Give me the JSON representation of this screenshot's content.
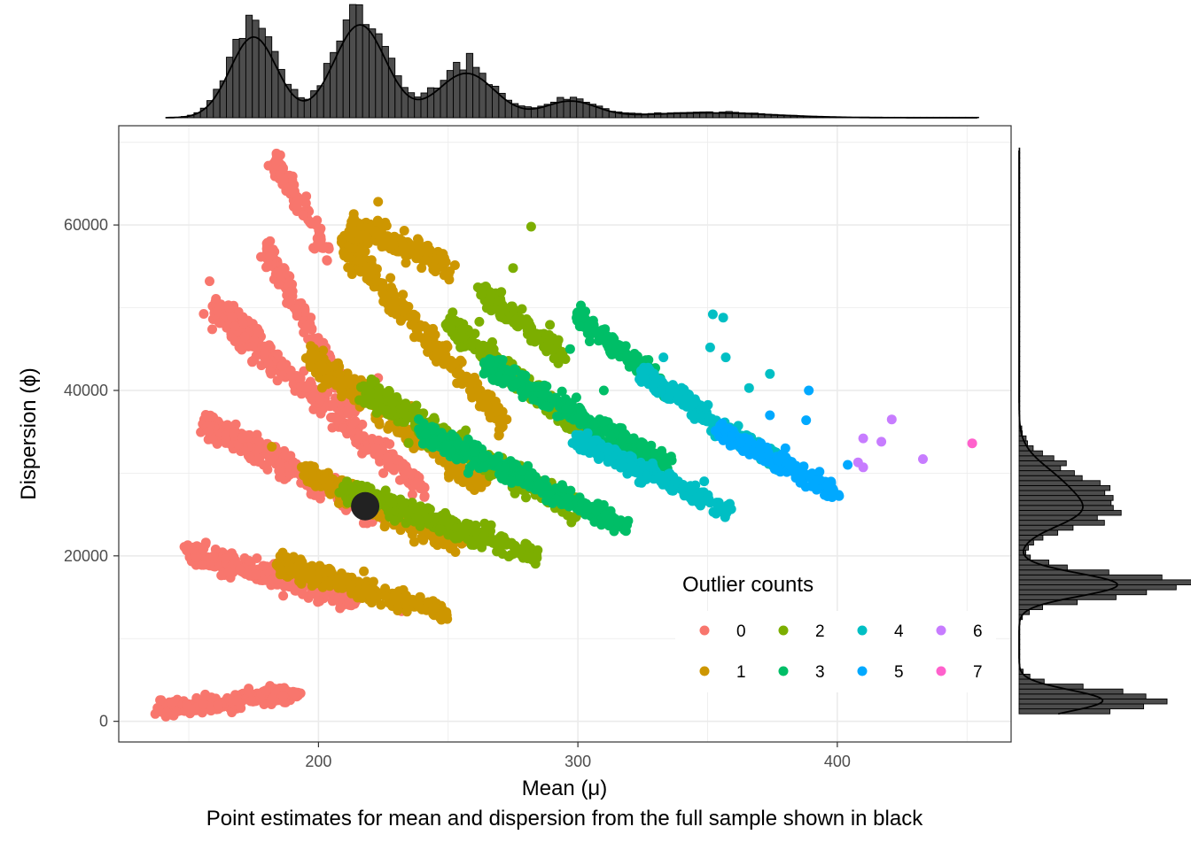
{
  "chart_data": {
    "type": "scatter",
    "xlabel": "Mean (μ)",
    "ylabel": "Dispersion (ϕ)",
    "caption": "Point estimates for mean and dispersion from the full sample shown in black",
    "xlim": [
      123,
      467
    ],
    "ylim": [
      -2500,
      72000
    ],
    "x_ticks": [
      200,
      300,
      400
    ],
    "y_ticks": [
      0,
      20000,
      40000,
      60000
    ],
    "grid": true,
    "legend": {
      "title": "Outlier counts",
      "placement": "bottom-right inside",
      "entries": [
        {
          "label": "0",
          "color": "#F8766D"
        },
        {
          "label": "1",
          "color": "#CD9600"
        },
        {
          "label": "2",
          "color": "#7CAE00"
        },
        {
          "label": "3",
          "color": "#00BE67"
        },
        {
          "label": "4",
          "color": "#00BFC4"
        },
        {
          "label": "5",
          "color": "#00A9FF"
        },
        {
          "label": "6",
          "color": "#C77CFF"
        },
        {
          "label": "7",
          "color": "#FF61CC"
        }
      ]
    },
    "series": [
      {
        "name": "0",
        "color": "#F8766D",
        "bands": [
          {
            "x": [
              140,
              192
            ],
            "y": [
              1500,
              3500
            ],
            "slope": 45,
            "spread": 1100
          },
          {
            "x": [
              150,
              215
            ],
            "y": [
              20500,
              14500
            ],
            "spread": 1400
          },
          {
            "x": [
              156,
              225
            ],
            "y": [
              36000,
              25000
            ],
            "spread": 1800
          },
          {
            "x": [
              160,
              240
            ],
            "y": [
              50000,
              28000
            ],
            "spread": 1800
          },
          {
            "x": [
              180,
              215
            ],
            "y": [
              57000,
              37000
            ],
            "spread": 1400
          },
          {
            "x": [
              183,
              205
            ],
            "y": [
              68000,
              56000
            ],
            "spread": 1500
          }
        ],
        "extra_points": [
          [
            158,
            53200
          ],
          [
            223,
            41500
          ],
          [
            225,
            30000
          ],
          [
            222,
            33000
          ],
          [
            238,
            28800
          ],
          [
            232,
            13300
          ],
          [
            185,
            29500
          ]
        ]
      },
      {
        "name": "1",
        "color": "#CD9600",
        "bands": [
          {
            "x": [
              185,
              250
            ],
            "y": [
              19000,
              13000
            ],
            "spread": 1300
          },
          {
            "x": [
              195,
              255
            ],
            "y": [
              30000,
              21000
            ],
            "spread": 1500
          },
          {
            "x": [
              197,
              265
            ],
            "y": [
              44000,
              28000
            ],
            "spread": 1700
          },
          {
            "x": [
              210,
              272
            ],
            "y": [
              57500,
              36000
            ],
            "spread": 1700
          },
          {
            "x": [
              213,
              250
            ],
            "y": [
              60000,
              55000
            ],
            "spread": 1500
          }
        ],
        "extra_points": [
          [
            223,
            62800
          ],
          [
            218,
            56800
          ],
          [
            245,
            55800
          ],
          [
            182,
            33200
          ]
        ]
      },
      {
        "name": "2",
        "color": "#7CAE00",
        "bands": [
          {
            "x": [
              210,
              285
            ],
            "y": [
              28000,
              20000
            ],
            "spread": 1500
          },
          {
            "x": [
              218,
              300
            ],
            "y": [
              40000,
              25000
            ],
            "spread": 1600
          },
          {
            "x": [
              250,
              310
            ],
            "y": [
              48000,
              33000
            ],
            "spread": 1400
          },
          {
            "x": [
              263,
              295
            ],
            "y": [
              52000,
              44000
            ],
            "spread": 1300
          }
        ],
        "extra_points": [
          [
            282,
            59800
          ],
          [
            275,
            54800
          ],
          [
            262,
            48300
          ],
          [
            281,
            48300
          ],
          [
            226,
            37500
          ]
        ]
      },
      {
        "name": "3",
        "color": "#00BE67",
        "bands": [
          {
            "x": [
              240,
              320
            ],
            "y": [
              35000,
              23500
            ],
            "spread": 1400
          },
          {
            "x": [
              265,
              335
            ],
            "y": [
              43000,
              31000
            ],
            "spread": 1400
          },
          {
            "x": [
              300,
              335
            ],
            "y": [
              49000,
              40000
            ],
            "spread": 1200
          }
        ],
        "extra_points": [
          [
            301,
            49500
          ],
          [
            297,
            45000
          ],
          [
            310,
            40000
          ]
        ]
      },
      {
        "name": "4",
        "color": "#00BFC4",
        "bands": [
          {
            "x": [
              300,
              358
            ],
            "y": [
              34000,
              25500
            ],
            "spread": 1200
          },
          {
            "x": [
              325,
              378
            ],
            "y": [
              42000,
              31000
            ],
            "spread": 1200
          }
        ],
        "extra_points": [
          [
            352,
            49200
          ],
          [
            356,
            48800
          ],
          [
            351,
            45200
          ],
          [
            357,
            44000
          ],
          [
            374,
            42000
          ],
          [
            333,
            44000
          ],
          [
            366,
            40300
          ]
        ]
      },
      {
        "name": "5",
        "color": "#00A9FF",
        "bands": [
          {
            "x": [
              355,
              400
            ],
            "y": [
              35000,
              27500
            ],
            "spread": 1100
          }
        ],
        "extra_points": [
          [
            389,
            40000
          ],
          [
            388,
            36400
          ],
          [
            404,
            31000
          ],
          [
            398,
            27100
          ],
          [
            392,
            28000
          ],
          [
            380,
            33000
          ],
          [
            374,
            37000
          ]
        ]
      },
      {
        "name": "6",
        "color": "#C77CFF",
        "bands": [],
        "extra_points": [
          [
            421,
            36500
          ],
          [
            410,
            34200
          ],
          [
            417,
            33800
          ],
          [
            408,
            31300
          ],
          [
            410,
            30700
          ],
          [
            433,
            31700
          ]
        ]
      },
      {
        "name": "7",
        "color": "#FF61CC",
        "bands": [],
        "extra_points": [
          [
            452,
            33600
          ]
        ]
      }
    ],
    "point_estimate": {
      "x": 218,
      "y": 26000,
      "color": "#222222"
    },
    "marginal_x": {
      "type": "histogram_density",
      "peaks": [
        {
          "center": 175,
          "height": 1.0,
          "width": 9
        },
        {
          "center": 216,
          "height": 1.15,
          "width": 10
        },
        {
          "center": 257,
          "height": 0.55,
          "width": 11
        },
        {
          "center": 297,
          "height": 0.2,
          "width": 10
        },
        {
          "center": 350,
          "height": 0.06,
          "width": 25
        }
      ]
    },
    "marginal_y": {
      "type": "histogram_density",
      "peaks": [
        {
          "center": 2500,
          "height": 0.85,
          "width": 1300
        },
        {
          "center": 16500,
          "height": 1.0,
          "width": 1400
        },
        {
          "center": 28000,
          "height": 0.45,
          "width": 2800
        },
        {
          "center": 25000,
          "height": 0.35,
          "width": 1800
        }
      ]
    }
  }
}
